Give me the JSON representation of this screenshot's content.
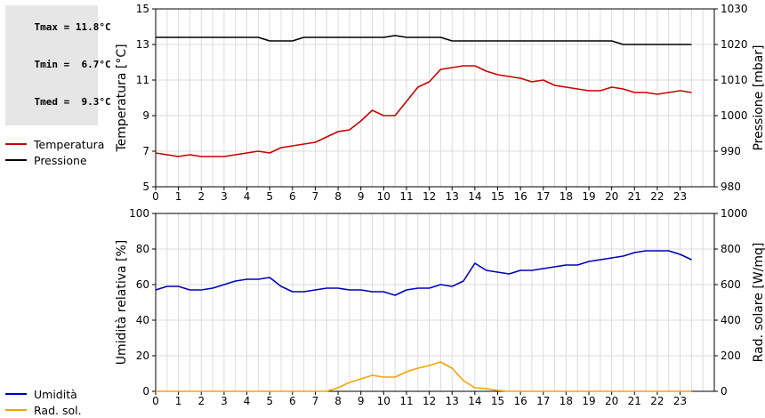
{
  "stats": [
    {
      "label": "Tmax",
      "value": "11.8°C"
    },
    {
      "label": "Tmin",
      "value": "6.7°C"
    },
    {
      "label": "Tmed",
      "value": "9.3°C"
    }
  ],
  "colors": {
    "temperature": "#cc0000",
    "pressure": "#000000",
    "humidity": "#0000bb",
    "radiation": "#f5a300",
    "grid": "#dcdcdc",
    "stats_bg": "#e6e6e6"
  },
  "chart_data": [
    {
      "type": "line",
      "x_ticks": [
        "0",
        "1",
        "2",
        "3",
        "4",
        "5",
        "6",
        "7",
        "8",
        "9",
        "10",
        "11",
        "12",
        "13",
        "14",
        "15",
        "16",
        "17",
        "18",
        "19",
        "20",
        "21",
        "22",
        "23"
      ],
      "xlim": [
        0,
        24.5
      ],
      "ylabel": "Temperatura [°C]",
      "ylim": [
        5,
        15
      ],
      "y_ticks": [
        5,
        7,
        9,
        11,
        13,
        15
      ],
      "ylabel_right": "Pressione [mbar]",
      "ylim_right": [
        980,
        1030
      ],
      "y_ticks_right": [
        980,
        990,
        1000,
        1010,
        1020,
        1030
      ],
      "grid": true,
      "legend_position": "left",
      "series": [
        {
          "name": "Temperatura",
          "axis": "left",
          "x": [
            0,
            0.5,
            1,
            1.5,
            2,
            2.5,
            3,
            3.5,
            4,
            4.5,
            5,
            5.5,
            6,
            6.5,
            7,
            7.5,
            8,
            8.5,
            9,
            9.5,
            10,
            10.5,
            11,
            11.5,
            12,
            12.5,
            13,
            13.5,
            14,
            14.5,
            15,
            15.5,
            16,
            16.5,
            17,
            17.5,
            18,
            18.5,
            19,
            19.5,
            20,
            20.5,
            21,
            21.5,
            22,
            22.5,
            23,
            23.5
          ],
          "values": [
            6.9,
            6.8,
            6.7,
            6.8,
            6.7,
            6.7,
            6.7,
            6.8,
            6.9,
            7.0,
            6.9,
            7.2,
            7.3,
            7.4,
            7.5,
            7.8,
            8.1,
            8.2,
            8.7,
            9.3,
            9.0,
            9.0,
            9.8,
            10.6,
            10.9,
            11.6,
            11.7,
            11.8,
            11.8,
            11.5,
            11.3,
            11.2,
            11.1,
            10.9,
            11.0,
            10.7,
            10.6,
            10.5,
            10.4,
            10.4,
            10.6,
            10.5,
            10.3,
            10.3,
            10.2,
            10.3,
            10.4,
            10.3
          ]
        },
        {
          "name": "Pressione",
          "axis": "right",
          "x": [
            0,
            0.5,
            1,
            1.5,
            2,
            2.5,
            3,
            3.5,
            4,
            4.5,
            5,
            5.5,
            6,
            6.5,
            7,
            7.5,
            8,
            8.5,
            9,
            9.5,
            10,
            10.5,
            11,
            11.5,
            12,
            12.5,
            13,
            13.5,
            14,
            14.5,
            15,
            15.5,
            16,
            16.5,
            17,
            17.5,
            18,
            18.5,
            19,
            19.5,
            20,
            20.5,
            21,
            21.5,
            22,
            22.5,
            23,
            23.5
          ],
          "values": [
            1022,
            1022,
            1022,
            1022,
            1022,
            1022,
            1022,
            1022,
            1022,
            1022,
            1021,
            1021,
            1021,
            1022,
            1022,
            1022,
            1022,
            1022,
            1022,
            1022,
            1022,
            1022.5,
            1022,
            1022,
            1022,
            1022,
            1021,
            1021,
            1021,
            1021,
            1021,
            1021,
            1021,
            1021,
            1021,
            1021,
            1021,
            1021,
            1021,
            1021,
            1021,
            1020,
            1020,
            1020,
            1020,
            1020,
            1020,
            1020
          ]
        }
      ]
    },
    {
      "type": "line",
      "x_ticks": [
        "0",
        "1",
        "2",
        "3",
        "4",
        "5",
        "6",
        "7",
        "8",
        "9",
        "10",
        "11",
        "12",
        "13",
        "14",
        "15",
        "16",
        "17",
        "18",
        "19",
        "20",
        "21",
        "22",
        "23"
      ],
      "xlim": [
        0,
        24.5
      ],
      "ylabel": "Umidità relativa [%]",
      "ylim": [
        0,
        100
      ],
      "y_ticks": [
        0,
        20,
        40,
        60,
        80,
        100
      ],
      "ylabel_right": "Rad. solare [W/mq]",
      "ylim_right": [
        0,
        1000
      ],
      "y_ticks_right": [
        0,
        200,
        400,
        600,
        800,
        1000
      ],
      "grid": true,
      "legend_position": "left",
      "series": [
        {
          "name": "Umidità",
          "axis": "left",
          "x": [
            0,
            0.5,
            1,
            1.5,
            2,
            2.5,
            3,
            3.5,
            4,
            4.5,
            5,
            5.5,
            6,
            6.5,
            7,
            7.5,
            8,
            8.5,
            9,
            9.5,
            10,
            10.5,
            11,
            11.5,
            12,
            12.5,
            13,
            13.5,
            14,
            14.5,
            15,
            15.5,
            16,
            16.5,
            17,
            17.5,
            18,
            18.5,
            19,
            19.5,
            20,
            20.5,
            21,
            21.5,
            22,
            22.5,
            23,
            23.5
          ],
          "values": [
            57,
            59,
            59,
            57,
            57,
            58,
            60,
            62,
            63,
            63,
            64,
            59,
            56,
            56,
            57,
            58,
            58,
            57,
            57,
            56,
            56,
            54,
            57,
            58,
            58,
            60,
            59,
            62,
            72,
            68,
            67,
            66,
            68,
            68,
            69,
            70,
            71,
            71,
            73,
            74,
            75,
            76,
            78,
            79,
            79,
            79,
            77,
            74
          ]
        },
        {
          "name": "Rad. sol.",
          "axis": "right",
          "x": [
            0,
            0.5,
            1,
            1.5,
            2,
            2.5,
            3,
            3.5,
            4,
            4.5,
            5,
            5.5,
            6,
            6.5,
            7,
            7.5,
            8,
            8.5,
            9,
            9.5,
            10,
            10.5,
            11,
            11.5,
            12,
            12.5,
            13,
            13.5,
            14,
            14.5,
            15,
            15.5,
            16,
            16.5,
            17,
            17.5,
            18,
            18.5,
            19,
            19.5,
            20,
            20.5,
            21,
            21.5,
            22,
            22.5,
            23,
            23.5
          ],
          "values": [
            0,
            0,
            0,
            0,
            0,
            0,
            0,
            0,
            0,
            0,
            0,
            0,
            0,
            0,
            0,
            0,
            20,
            50,
            70,
            90,
            80,
            80,
            110,
            130,
            145,
            165,
            130,
            60,
            20,
            15,
            5,
            0,
            0,
            0,
            0,
            0,
            0,
            0,
            0,
            0,
            0,
            0,
            0,
            0,
            0,
            0,
            0,
            0
          ]
        }
      ]
    }
  ]
}
